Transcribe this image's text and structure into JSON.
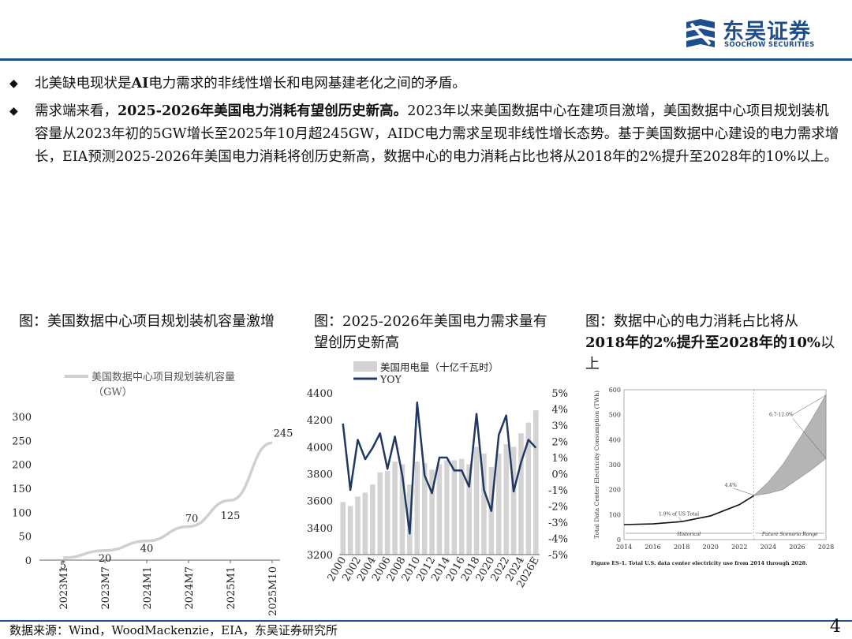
{
  "header": {
    "logo_cn": "东吴证券",
    "logo_en": "SOOCHOW SECURITIES",
    "brand_color": "#1f4e8c"
  },
  "bullets": [
    {
      "icon": "diamond-icon",
      "parts": [
        {
          "text": "北美缺电现状是",
          "bold": false
        },
        {
          "text": "AI",
          "bold": true
        },
        {
          "text": "电力需求的非线性增长和电网基建老化之间的矛盾。",
          "bold": false
        }
      ]
    },
    {
      "icon": "diamond-icon",
      "parts": [
        {
          "text": "需求端来看，",
          "bold": false
        },
        {
          "text": "2025-2026年美国电力消耗有望创历史新高。",
          "bold": true
        },
        {
          "text": "2023年以来美国数据中心在建项目激增，美国数据中心项目规划装机容量从2023年初的5GW增长至2025年10月超245GW，AIDC电力需求呈现非线性增长态势。基于美国数据中心建设的电力需求增长，EIA预测2025-2026年美国电力消耗将创历史新高，数据中心的电力消耗占比也将从2018年的2%提升至2028年的10%以上。",
          "bold": false
        }
      ]
    }
  ],
  "panels": {
    "left_title": "图：美国数据中心项目规划装机容量激增",
    "middle_title": "图：2025-2026年美国电力需求量有望创历史新高",
    "right_title_parts": [
      {
        "text": "图：数据中心的电力消耗占比将从",
        "bold": false
      },
      {
        "text": "2018年的2%提升至2028年的10%",
        "bold": true
      },
      {
        "text": "以上",
        "bold": false
      }
    ]
  },
  "chart_data": [
    {
      "type": "line",
      "legend": [
        "美国数据中心项目规划装机容量",
        "（GW）"
      ],
      "categories": [
        "2023M1",
        "2023M7",
        "2024M1",
        "2024M7",
        "2025M1",
        "2025M10"
      ],
      "series": [
        {
          "name": "美国数据中心项目规划装机容量（GW）",
          "values": [
            5,
            20,
            40,
            70,
            125,
            245
          ]
        }
      ],
      "ylim": [
        0,
        300
      ],
      "yticks": [
        0,
        50,
        100,
        150,
        200,
        250,
        300
      ],
      "color": "#d0d0d0"
    },
    {
      "type": "bar",
      "legend": [
        "美国用电量（十亿千瓦时）",
        "YOY"
      ],
      "categories": [
        "2000",
        "2001",
        "2002",
        "2003",
        "2004",
        "2005",
        "2006",
        "2007",
        "2008",
        "2009",
        "2010",
        "2011",
        "2012",
        "2013",
        "2014",
        "2015",
        "2016",
        "2017",
        "2018",
        "2019",
        "2020",
        "2021",
        "2022",
        "2023",
        "2024",
        "2025",
        "2026E"
      ],
      "tick_labels": [
        "2000",
        "2002",
        "2004",
        "2006",
        "2008",
        "2010",
        "2012",
        "2014",
        "2016",
        "2018",
        "2020",
        "2022",
        "2024",
        "2026E"
      ],
      "bar_values": [
        3590,
        3560,
        3630,
        3660,
        3720,
        3810,
        3820,
        3890,
        3870,
        3720,
        3890,
        3880,
        3830,
        3870,
        3900,
        3900,
        3910,
        3870,
        4000,
        3950,
        3850,
        3950,
        4020,
        4000,
        4100,
        4180,
        4270
      ],
      "yoy_values": [
        3.1,
        -1.0,
        2.1,
        0.9,
        1.6,
        2.5,
        0.3,
        2.3,
        -0.1,
        -3.7,
        4.4,
        -0.1,
        -1.2,
        1.0,
        1.0,
        0.2,
        0.2,
        -0.8,
        3.7,
        -1.0,
        -2.3,
        2.4,
        3.6,
        -1.1,
        0.7,
        2.1,
        1.6
      ],
      "ylim_left": [
        3200,
        4400
      ],
      "yticks_left": [
        3200,
        3400,
        3600,
        3800,
        4000,
        4200,
        4400
      ],
      "ylim_right": [
        -5,
        5
      ],
      "yticks_right": [
        "-5%",
        "-4%",
        "-3%",
        "-2%",
        "-1%",
        "0%",
        "1%",
        "2%",
        "3%",
        "4%",
        "5%"
      ],
      "bar_color": "#d3d3d3",
      "line_color": "#1f3864"
    },
    {
      "type": "area",
      "ylabel": "Total Data Center Electricity Consumption (TWh)",
      "x": [
        2014,
        2016,
        2018,
        2020,
        2022,
        2023
      ],
      "historical": [
        60,
        63,
        72,
        95,
        140,
        176
      ],
      "scenario_x": [
        2023,
        2024,
        2025,
        2026,
        2027,
        2028
      ],
      "scenario_low": [
        176,
        185,
        200,
        240,
        280,
        325
      ],
      "scenario_high": [
        176,
        230,
        300,
        390,
        480,
        580
      ],
      "xlim": [
        2014,
        2028
      ],
      "xticks": [
        2014,
        2016,
        2018,
        2020,
        2022,
        2024,
        2026,
        2028
      ],
      "ylim": [
        0,
        600
      ],
      "yticks": [
        0,
        100,
        200,
        300,
        400,
        500,
        600
      ],
      "annotations": [
        "1.9% of US Total",
        "4.4%",
        "6.7-12.0%"
      ],
      "region_labels": [
        "Historical",
        "Future Scenario Range"
      ],
      "caption": "Figure ES-1. Total U.S. data center electricity use from 2014 through 2028."
    }
  ],
  "footer": {
    "source": "数据来源：Wind，WoodMackenzie，EIA，东吴证券研究所",
    "page": "4"
  }
}
